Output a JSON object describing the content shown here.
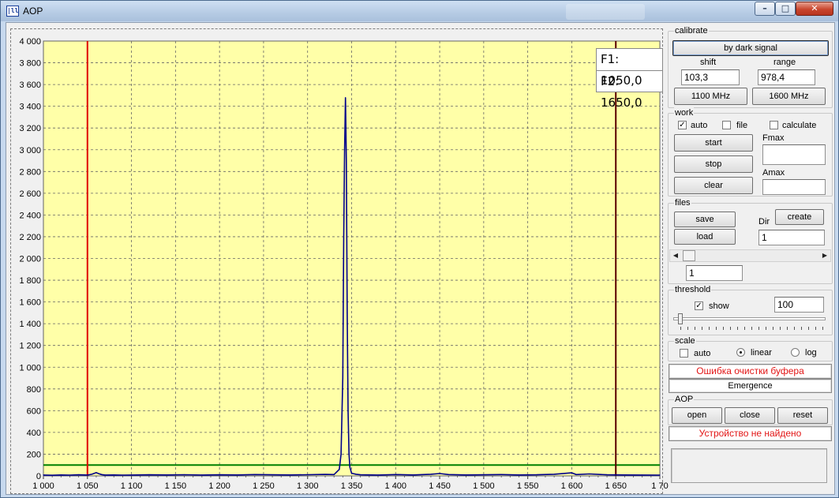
{
  "window": {
    "title": "AOP"
  },
  "markers": {
    "f1": "F1: 1050,0",
    "f2": "F2: 1650,0"
  },
  "colors": {
    "plot_bg": "#ffffa8",
    "spectrum": "#00008b",
    "f1_line": "#e00000",
    "f2_line": "#5a0000",
    "threshold_line": "#008000"
  },
  "chart_data": {
    "type": "line",
    "title": "",
    "xlabel": "",
    "ylabel": "",
    "xlim": [
      1000,
      1700
    ],
    "ylim": [
      0,
      4000
    ],
    "x_ticks": [
      "1 000",
      "1 050",
      "1 100",
      "1 150",
      "1 200",
      "1 250",
      "1 300",
      "1 350",
      "1 400",
      "1 450",
      "1 500",
      "1 550",
      "1 600",
      "1 650",
      "1 70"
    ],
    "y_ticks": [
      "0",
      "200",
      "400",
      "600",
      "800",
      "1 000",
      "1 200",
      "1 400",
      "1 600",
      "1 800",
      "2 000",
      "2 200",
      "2 400",
      "2 600",
      "2 800",
      "3 000",
      "3 200",
      "3 400",
      "3 600",
      "3 800",
      "4 000"
    ],
    "grid": true,
    "series": [
      {
        "x": [
          1000,
          1010,
          1020,
          1030,
          1040,
          1050,
          1055,
          1060,
          1063,
          1066,
          1070,
          1080,
          1090,
          1100,
          1120,
          1140,
          1160,
          1180,
          1200,
          1220,
          1240,
          1260,
          1280,
          1300,
          1320,
          1330,
          1336,
          1338,
          1340,
          1341,
          1342,
          1343,
          1344,
          1345,
          1346,
          1347,
          1348,
          1350,
          1355,
          1360,
          1380,
          1400,
          1420,
          1440,
          1450,
          1460,
          1480,
          1500,
          1520,
          1540,
          1560,
          1580,
          1600,
          1605,
          1620,
          1640,
          1660,
          1680,
          1700
        ],
        "y": [
          8,
          6,
          9,
          7,
          10,
          8,
          15,
          30,
          20,
          12,
          8,
          9,
          7,
          8,
          10,
          9,
          11,
          8,
          10,
          9,
          12,
          10,
          9,
          11,
          14,
          12,
          60,
          200,
          900,
          2200,
          3000,
          3480,
          2900,
          1500,
          600,
          200,
          80,
          25,
          15,
          10,
          8,
          12,
          9,
          15,
          22,
          12,
          9,
          10,
          12,
          9,
          10,
          15,
          28,
          12,
          18,
          10,
          9,
          8,
          7
        ]
      }
    ],
    "markers": [
      {
        "name": "F1",
        "x": 1050
      },
      {
        "name": "F2",
        "x": 1650
      }
    ],
    "threshold": 100
  },
  "calibrate": {
    "label": "calibrate",
    "by_dark_signal": "by dark signal",
    "shift_label": "shift",
    "range_label": "range",
    "shift_value": "103,3",
    "range_value": "978,4",
    "btn_1100": "1100 MHz",
    "btn_1600": "1600 MHz"
  },
  "work": {
    "label": "work",
    "auto": "auto",
    "file": "file",
    "calculate": "calculate",
    "start": "start",
    "stop": "stop",
    "clear": "clear",
    "fmax_label": "Fmax",
    "amax_label": "Amax",
    "fmax_value": "",
    "amax_value": ""
  },
  "files": {
    "label": "files",
    "save": "save",
    "load": "load",
    "dir_label": "Dir",
    "create": "create",
    "dir_value": "1",
    "index_value": "1"
  },
  "threshold": {
    "label": "threshold",
    "show": "show",
    "value": "100"
  },
  "scale": {
    "label": "scale",
    "auto": "auto",
    "linear": "linear",
    "log": "log"
  },
  "status": {
    "buffer_error": "Ошибка очистки буфера",
    "emergence": "Emergence"
  },
  "aop": {
    "label": "AOP",
    "open": "open",
    "close": "close",
    "reset": "reset",
    "device_status": "Устройство не найдено"
  }
}
